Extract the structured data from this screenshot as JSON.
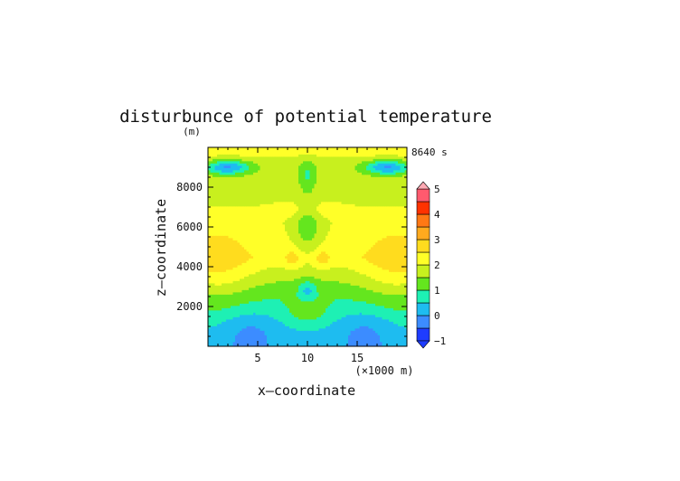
{
  "chart_data": {
    "type": "heatmap",
    "title": "disturbunce of potential temperature",
    "units_label": "(m)",
    "time_label": "8640 s",
    "xlabel": "x—coordinate",
    "ylabel": "z—coordinate",
    "x_unit_label": "(×1000 m)",
    "xlim": [
      0,
      20
    ],
    "ylim": [
      0,
      10000
    ],
    "x_ticks": [
      5,
      10,
      15
    ],
    "x_tick_labels": [
      "5",
      "10",
      "15"
    ],
    "y_ticks": [
      2000,
      4000,
      6000,
      8000
    ],
    "y_tick_labels": [
      "2000",
      "4000",
      "6000",
      "8000"
    ],
    "levels": [
      -1,
      -0.5,
      0,
      0.5,
      1,
      1.5,
      2,
      2.5,
      3,
      3.5,
      4,
      4.5,
      5
    ],
    "level_colors": [
      "#1e3cff",
      "#3c8cff",
      "#1ebcf0",
      "#1ef0b4",
      "#64e61e",
      "#c8f01e",
      "#ffff28",
      "#ffdc1e",
      "#ffaa1e",
      "#ff7814",
      "#ff3200",
      "#ff5a6e",
      "#ffaab4"
    ],
    "colorbar_tick_values": [
      -1,
      0,
      1,
      2,
      3,
      4,
      5
    ],
    "colorbar_tick_labels": [
      "−1",
      "0",
      "1",
      "2",
      "3",
      "4",
      "5"
    ],
    "colorbar_extend": "both",
    "field_description": "Symmetric field about x=10: values about 0 near the ground, 0.5-1 up to ~2500 m, 1.5-2.5 in mid levels with maxima ~3 near (8.5,4400) and (11.5,4400), 1.5-2 near 9000 m with a 0 band near the top edges.",
    "grid": false
  }
}
